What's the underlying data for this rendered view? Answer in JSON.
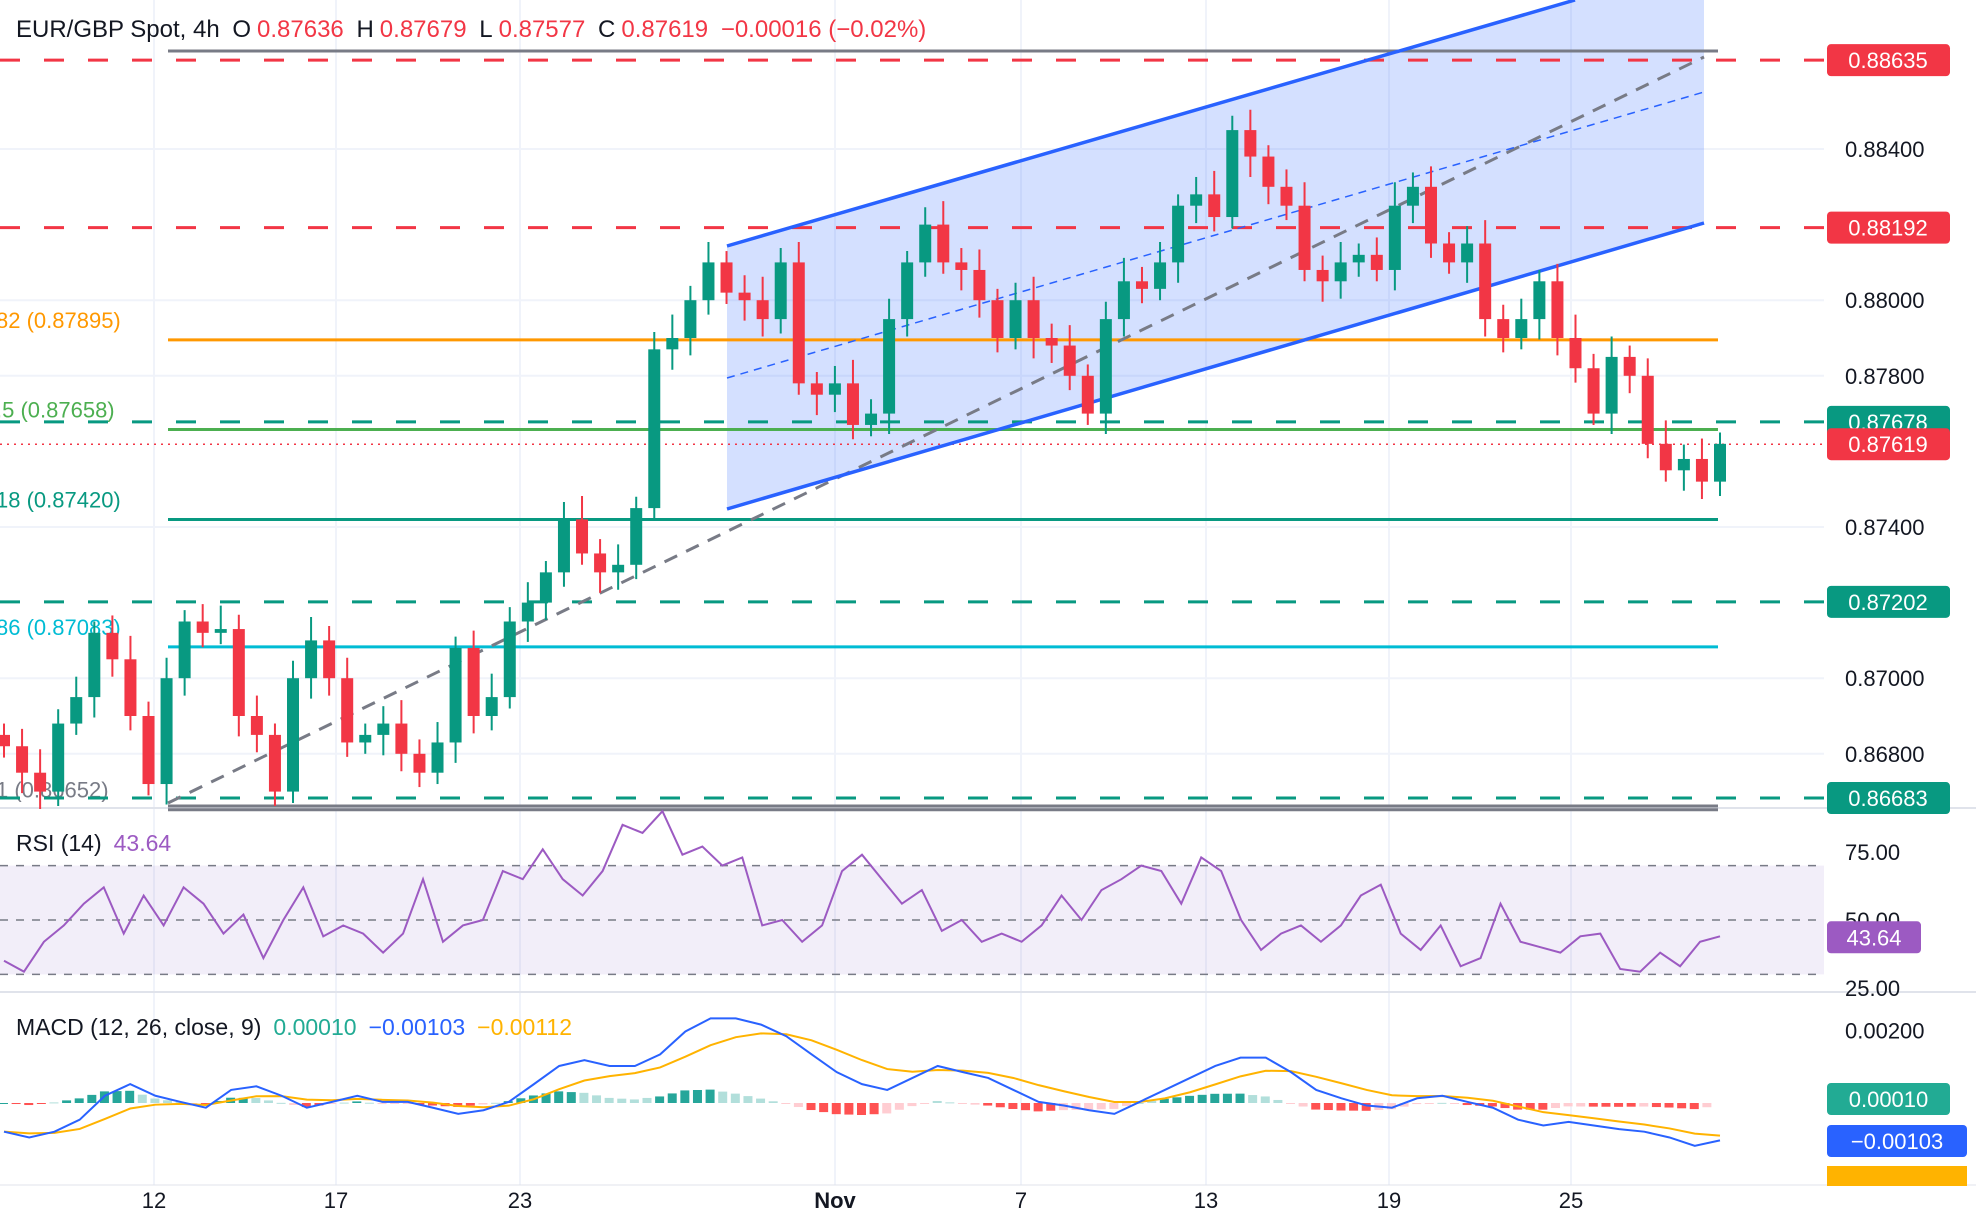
{
  "header": {
    "symbol": "EUR/GBP Spot, 4h",
    "o_label": "O",
    "open": "0.87636",
    "h_label": "H",
    "high": "0.87679",
    "l_label": "L",
    "low": "0.87577",
    "c_label": "C",
    "close": "0.87619",
    "change": "−0.00016 (−0.02%)"
  },
  "colors": {
    "up": "#089981",
    "down": "#f23645",
    "channel": "#2962ff",
    "rsi": "#9c5ac2",
    "macd": "#2962ff",
    "signal": "#ffb300"
  },
  "chart_data": [
    {
      "type": "candlestick",
      "title": "EUR/GBP Spot, 4h",
      "x_ticks": [
        "12",
        "17",
        "23",
        "Nov",
        "7",
        "13",
        "19",
        "25"
      ],
      "y_ticks": [
        "0.88400",
        "0.88000",
        "0.87800",
        "0.87400",
        "0.87000",
        "0.86800"
      ],
      "ylim": [
        0.8658,
        0.889
      ],
      "closes": [
        0.8682,
        0.8675,
        0.867,
        0.8688,
        0.8695,
        0.8712,
        0.8705,
        0.869,
        0.8672,
        0.87,
        0.8715,
        0.8712,
        0.8713,
        0.869,
        0.8685,
        0.867,
        0.87,
        0.871,
        0.87,
        0.8683,
        0.8685,
        0.8688,
        0.868,
        0.8675,
        0.8683,
        0.8708,
        0.869,
        0.8695,
        0.8715,
        0.872,
        0.8728,
        0.8742,
        0.8733,
        0.8728,
        0.873,
        0.8745,
        0.8787,
        0.879,
        0.88,
        0.881,
        0.8802,
        0.88,
        0.8795,
        0.881,
        0.8778,
        0.8775,
        0.8778,
        0.8767,
        0.877,
        0.8795,
        0.881,
        0.882,
        0.881,
        0.8808,
        0.88,
        0.879,
        0.88,
        0.879,
        0.8788,
        0.878,
        0.877,
        0.8795,
        0.8805,
        0.8803,
        0.881,
        0.8825,
        0.8828,
        0.8822,
        0.8845,
        0.8838,
        0.883,
        0.8825,
        0.8808,
        0.8805,
        0.881,
        0.8812,
        0.8808,
        0.8825,
        0.883,
        0.8815,
        0.881,
        0.8815,
        0.8795,
        0.879,
        0.8795,
        0.8805,
        0.879,
        0.8782,
        0.877,
        0.8785,
        0.878,
        0.8762,
        0.8755,
        0.8758,
        0.8752,
        0.8762
      ],
      "levels": [
        {
          "price": 0.88635,
          "label": "0.88635",
          "style": "dashed",
          "color": "#f23645"
        },
        {
          "price": 0.88192,
          "label": "0.88192",
          "style": "dashed",
          "color": "#f23645"
        },
        {
          "price": 0.87678,
          "label": "0.87678",
          "style": "dashed",
          "color": "#089981"
        },
        {
          "price": 0.87202,
          "label": "0.87202",
          "style": "dashed",
          "color": "#089981"
        },
        {
          "price": 0.86683,
          "label": "0.86683",
          "style": "dashed",
          "color": "#089981"
        }
      ],
      "current_price": {
        "price": 0.87619,
        "label": "0.87619",
        "color": "#f23645"
      },
      "fib_levels": [
        {
          "price": 0.88635,
          "label": "",
          "color": "#787b86"
        },
        {
          "price": 0.87895,
          "label": "82 (0.87895)",
          "color": "#ff9800"
        },
        {
          "price": 0.87658,
          "label": ".5 (0.87658)",
          "color": "#4caf50"
        },
        {
          "price": 0.8742,
          "label": "18 (0.87420)",
          "color": "#089981"
        },
        {
          "price": 0.87083,
          "label": "86 (0.87083)",
          "color": "#00bcd4"
        },
        {
          "price": 0.86652,
          "label": "1 (0.86652)",
          "color": "#787b86"
        }
      ]
    },
    {
      "type": "line",
      "title": "RSI (14)",
      "last_value": "43.64",
      "y_ticks": [
        "75.00",
        "50.00",
        "25.00"
      ],
      "bands": [
        70,
        50,
        30
      ],
      "values": [
        35,
        31,
        42,
        48,
        56,
        62,
        45,
        59,
        48,
        62,
        56,
        45,
        52,
        36,
        50,
        62,
        44,
        48,
        45,
        38,
        45,
        65,
        42,
        48,
        50,
        68,
        65,
        76,
        65,
        59,
        68,
        85,
        82,
        90,
        74,
        77,
        70,
        73,
        48,
        50,
        42,
        48,
        68,
        74,
        65,
        56,
        61,
        46,
        50,
        42,
        45,
        42,
        48,
        59,
        50,
        61,
        65,
        70,
        68,
        56,
        73,
        68,
        50,
        39,
        45,
        48,
        42,
        48,
        59,
        63,
        45,
        39,
        48,
        33,
        36,
        56,
        42,
        40,
        38,
        44,
        45,
        32,
        31,
        38,
        33,
        42,
        44
      ]
    },
    {
      "type": "line",
      "title": "MACD (12, 26, close, 9)",
      "histogram_value": "0.00010",
      "macd_value": "−0.00103",
      "signal_value": "−0.00112",
      "y_ticks": [
        "0.00200"
      ],
      "macd": [
        -0.00079,
        -0.00095,
        -0.00079,
        -0.00046,
        0.0002,
        0.00052,
        0.0002,
        3e-05,
        -0.00013,
        0.00036,
        0.00046,
        0.0002,
        -0.00013,
        3e-05,
        0.0002,
        3e-05,
        3e-05,
        -0.00013,
        -0.0003,
        -0.0002,
        3e-05,
        0.00052,
        0.00102,
        0.00118,
        0.00102,
        0.00102,
        0.00134,
        0.00197,
        0.00233,
        0.00233,
        0.00216,
        0.00184,
        0.00134,
        0.00085,
        0.00052,
        0.00036,
        0.00069,
        0.00102,
        0.00085,
        0.00069,
        0.00036,
        3e-05,
        -7e-05,
        -0.0002,
        -0.0003,
        3e-05,
        0.00036,
        0.00069,
        0.00102,
        0.00125,
        0.00125,
        0.00085,
        0.00036,
        0.00013,
        -7e-05,
        -0.00013,
        0.00013,
        0.0002,
        3e-05,
        -0.00013,
        -0.00046,
        -0.00062,
        -0.00052,
        -0.00062,
        -0.00072,
        -0.00079,
        -0.00095,
        -0.00118,
        -0.00103
      ]
    }
  ]
}
